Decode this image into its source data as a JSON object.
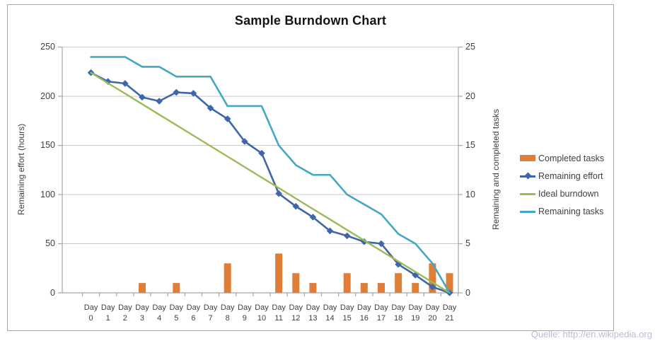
{
  "source_note": "Quelle: http://en.wikipedia.org",
  "colors": {
    "bar": "#df7e36",
    "effort": "#3e66a8",
    "ideal": "#9bbb59",
    "tasks": "#44a7c4",
    "grid": "#c9c9c9",
    "axis": "#a6a6a6",
    "tick_text": "#3f3f3f",
    "title_text": "#141414",
    "source_text": "#b9bdd1"
  },
  "chart_data": {
    "type": "combo",
    "title": "Sample Burndown Chart",
    "categories": [
      "Day 0",
      "Day 1",
      "Day 2",
      "Day 3",
      "Day 4",
      "Day 5",
      "Day 6",
      "Day 7",
      "Day 8",
      "Day 9",
      "Day 10",
      "Day 11",
      "Day 12",
      "Day 13",
      "Day 14",
      "Day 15",
      "Day 16",
      "Day 17",
      "Day 18",
      "Day 19",
      "Day 20",
      "Day 21"
    ],
    "series": [
      {
        "name": "Completed tasks",
        "type": "bar",
        "axis": "right",
        "color": "#df7e36",
        "values": [
          0,
          0,
          0,
          1,
          0,
          1,
          0,
          0,
          3,
          0,
          0,
          4,
          2,
          1,
          0,
          2,
          1,
          1,
          2,
          1,
          3,
          2
        ]
      },
      {
        "name": "Remaining effort",
        "type": "line",
        "axis": "left",
        "color": "#3e66a8",
        "marker": "diamond",
        "values": [
          224,
          215,
          213,
          199,
          195,
          204,
          203,
          188,
          177,
          154,
          142,
          101,
          88,
          77,
          63,
          58,
          52,
          50,
          29,
          18,
          6,
          0
        ]
      },
      {
        "name": "Ideal burndown",
        "type": "line",
        "axis": "left",
        "color": "#9bbb59",
        "values": [
          224,
          213.3,
          202.7,
          192,
          181.3,
          170.7,
          160,
          149.3,
          138.7,
          128,
          117.3,
          106.7,
          96,
          85.3,
          74.7,
          64,
          53.3,
          42.7,
          32,
          21.3,
          10.7,
          0
        ]
      },
      {
        "name": "Remaining tasks",
        "type": "line",
        "axis": "right",
        "color": "#44a7c4",
        "values": [
          24,
          24,
          24,
          23,
          23,
          22,
          22,
          22,
          19,
          19,
          19,
          15,
          13,
          12,
          12,
          10,
          9,
          8,
          6,
          5,
          3,
          0
        ]
      }
    ],
    "left_axis": {
      "label": "Remaining effort (hours)",
      "min": 0,
      "max": 250,
      "ticks": [
        0,
        50,
        100,
        150,
        200,
        250
      ]
    },
    "right_axis": {
      "label": "Remaining and completed tasks",
      "min": 0,
      "max": 25,
      "ticks": [
        0,
        5,
        10,
        15,
        20,
        25
      ]
    },
    "x_axis": {
      "tick_word": "Day",
      "tick_numbers": [
        "0",
        "1",
        "2",
        "3",
        "4",
        "5",
        "6",
        "7",
        "8",
        "9",
        "10",
        "11",
        "12",
        "13",
        "14",
        "15",
        "16",
        "17",
        "18",
        "19",
        "20",
        "21"
      ]
    },
    "legend_position": "right",
    "grid": true
  }
}
